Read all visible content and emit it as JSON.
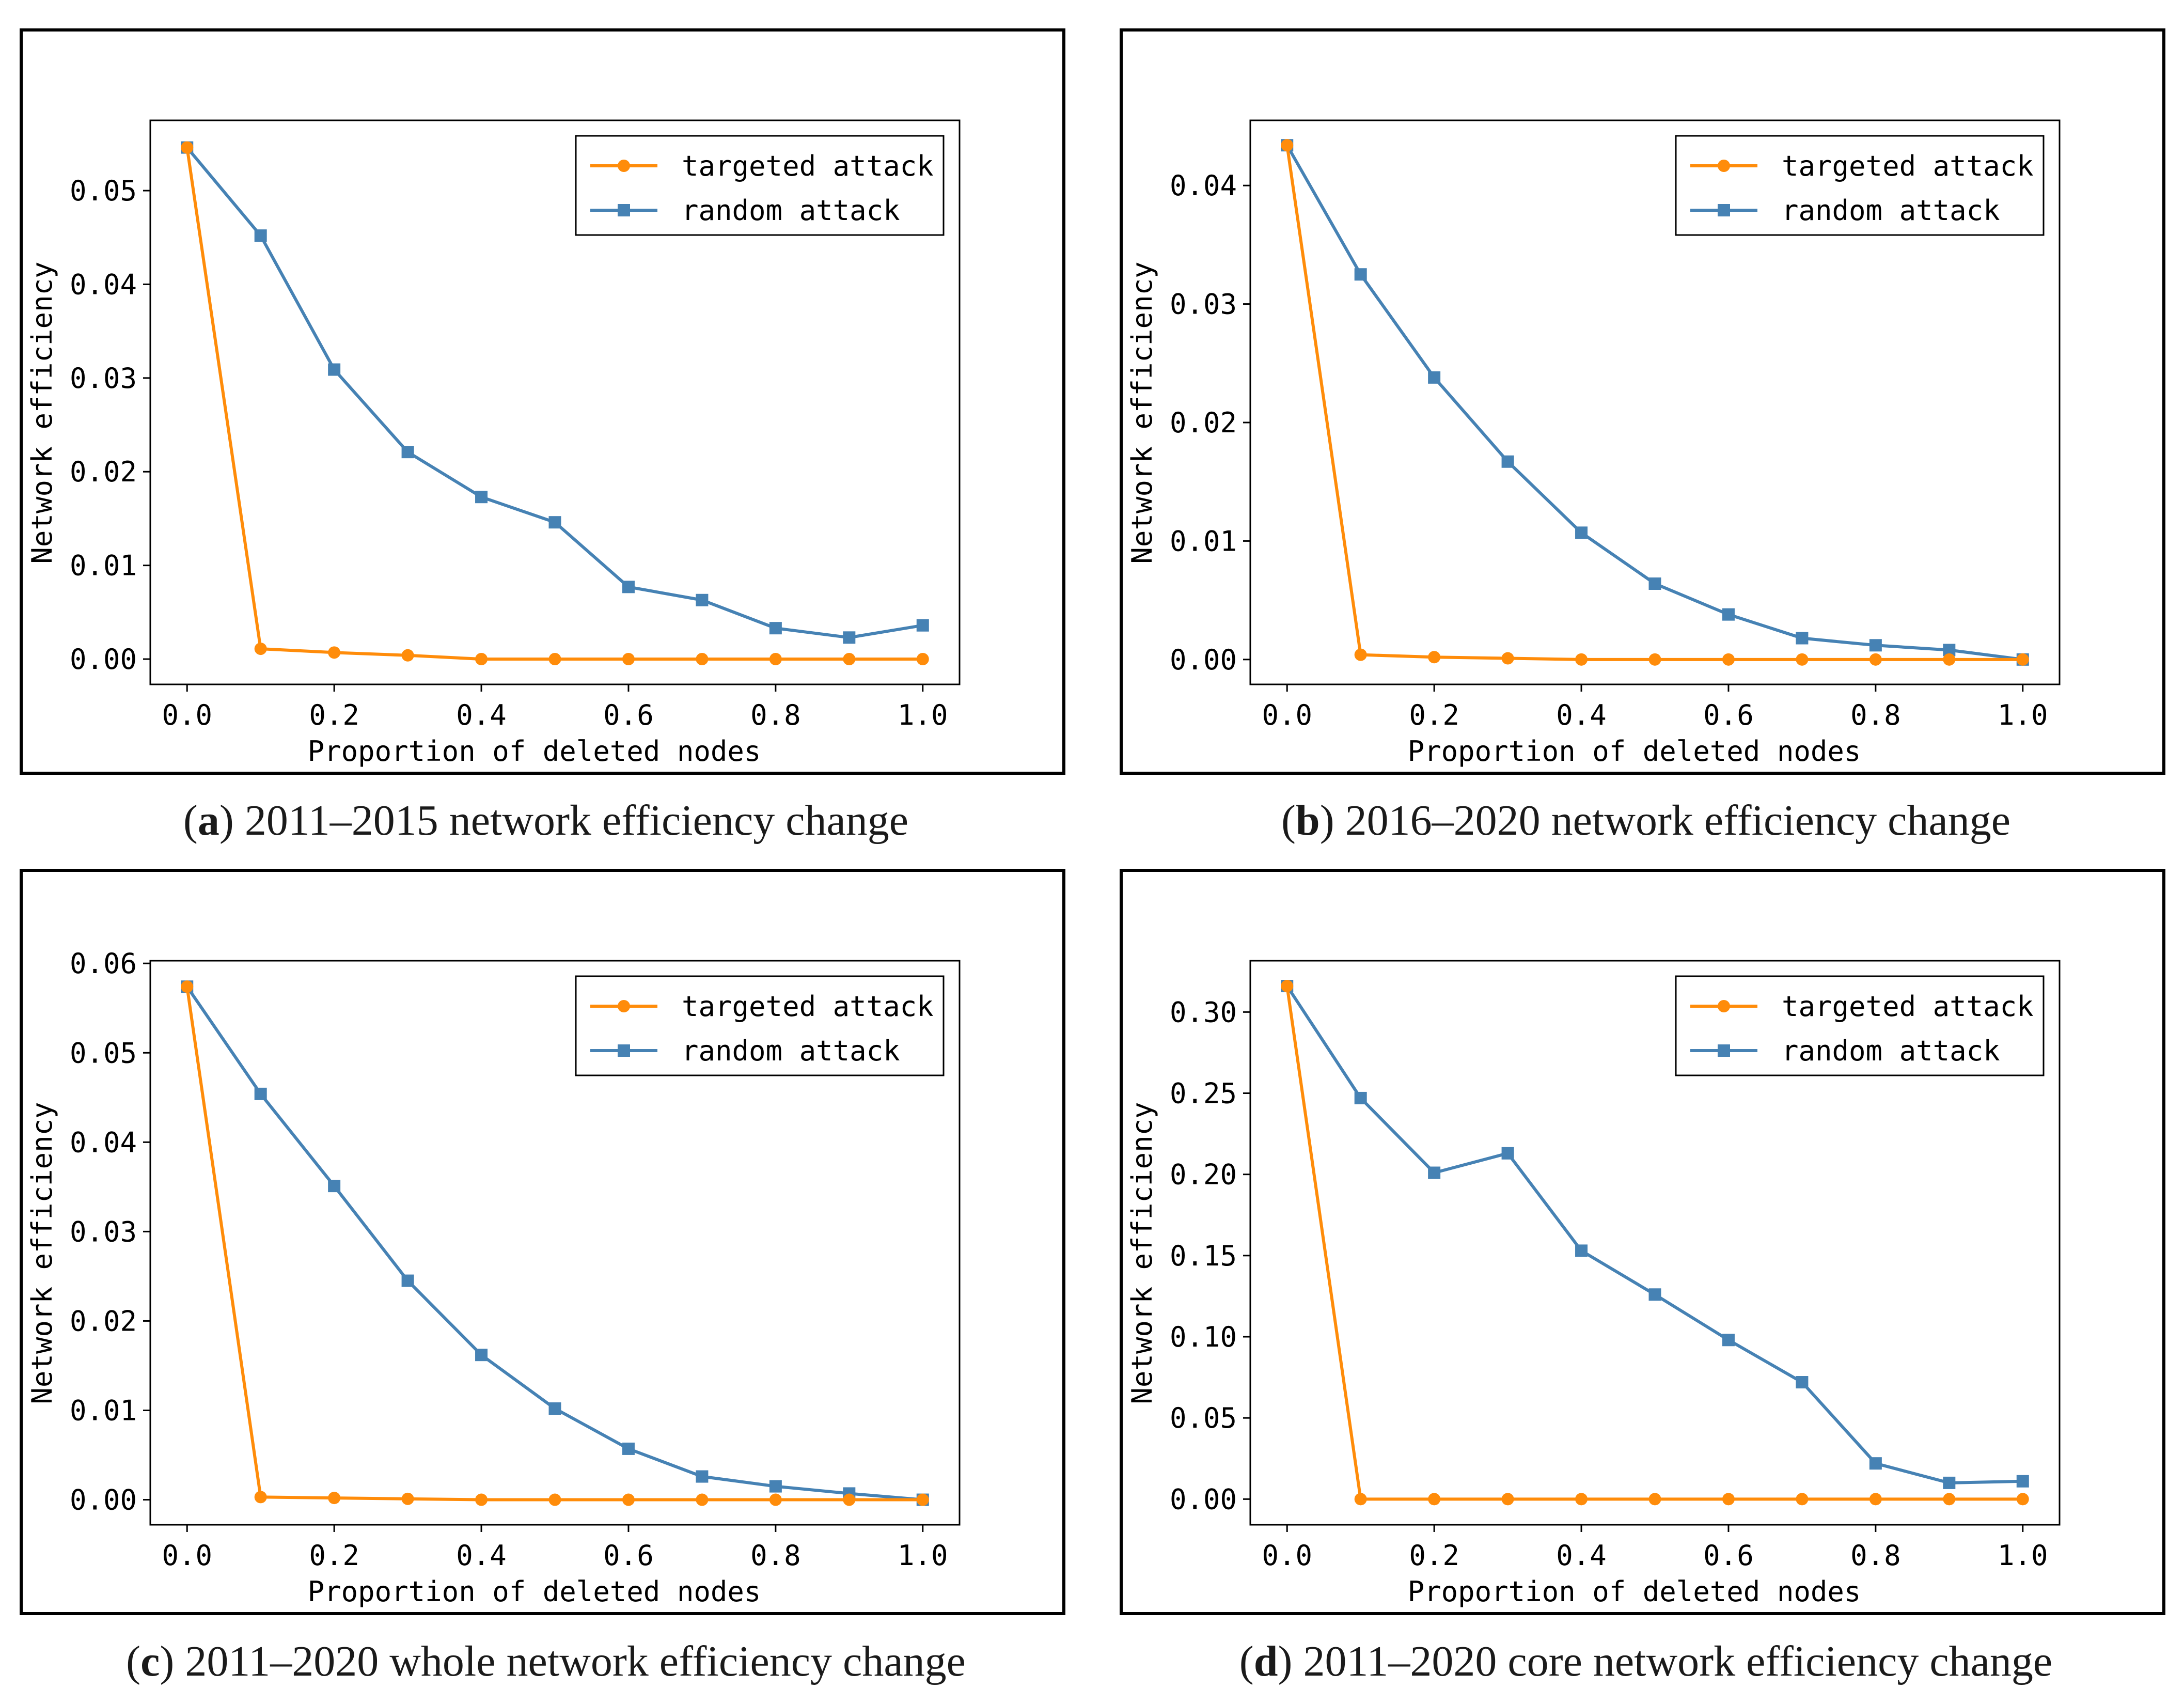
{
  "colors": {
    "targeted": "#FF8C0A",
    "random": "#4682B4"
  },
  "chart_data": [
    {
      "id": "a",
      "type": "line",
      "caption_letter": "a",
      "caption_text": " 2011–2015 network efficiency change",
      "xlabel": "Proportion of deleted nodes",
      "ylabel": "Network efficiency",
      "xlim": [
        -0.05,
        1.05
      ],
      "ylim": [
        -0.0027,
        0.0575
      ],
      "xticks": [
        0.0,
        0.2,
        0.4,
        0.6,
        0.8,
        1.0
      ],
      "xtick_labels": [
        "0.0",
        "0.2",
        "0.4",
        "0.6",
        "0.8",
        "1.0"
      ],
      "yticks": [
        0.0,
        0.01,
        0.02,
        0.03,
        0.04,
        0.05
      ],
      "ytick_labels": [
        "0.00",
        "0.01",
        "0.02",
        "0.03",
        "0.04",
        "0.05"
      ],
      "legend_position": "top-right",
      "x": [
        0.0,
        0.1,
        0.2,
        0.3,
        0.4,
        0.5,
        0.6,
        0.7,
        0.8,
        0.9,
        1.0
      ],
      "series": [
        {
          "name": "targeted attack",
          "marker": "circle",
          "color_key": "targeted",
          "values": [
            0.0546,
            0.0011,
            0.0007,
            0.0004,
            0.0,
            0.0,
            0.0,
            0.0,
            0.0,
            0.0,
            0.0
          ]
        },
        {
          "name": "random attack",
          "marker": "square",
          "color_key": "random",
          "values": [
            0.0546,
            0.0452,
            0.0309,
            0.0221,
            0.0173,
            0.0146,
            0.0077,
            0.0063,
            0.0033,
            0.0023,
            0.0036
          ]
        }
      ]
    },
    {
      "id": "b",
      "type": "line",
      "caption_letter": "b",
      "caption_text": " 2016–2020 network efficiency change",
      "xlabel": "Proportion of deleted nodes",
      "ylabel": "Network efficiency",
      "xlim": [
        -0.05,
        1.05
      ],
      "ylim": [
        -0.0021,
        0.0455
      ],
      "xticks": [
        0.0,
        0.2,
        0.4,
        0.6,
        0.8,
        1.0
      ],
      "xtick_labels": [
        "0.0",
        "0.2",
        "0.4",
        "0.6",
        "0.8",
        "1.0"
      ],
      "yticks": [
        0.0,
        0.01,
        0.02,
        0.03,
        0.04
      ],
      "ytick_labels": [
        "0.00",
        "0.01",
        "0.02",
        "0.03",
        "0.04"
      ],
      "legend_position": "top-right",
      "x": [
        0.0,
        0.1,
        0.2,
        0.3,
        0.4,
        0.5,
        0.6,
        0.7,
        0.8,
        0.9,
        1.0
      ],
      "series": [
        {
          "name": "targeted attack",
          "marker": "circle",
          "color_key": "targeted",
          "values": [
            0.0434,
            0.0004,
            0.0002,
            0.0001,
            0.0,
            0.0,
            0.0,
            0.0,
            0.0,
            0.0,
            0.0
          ]
        },
        {
          "name": "random attack",
          "marker": "square",
          "color_key": "random",
          "values": [
            0.0434,
            0.0325,
            0.0238,
            0.0167,
            0.0107,
            0.0064,
            0.0038,
            0.0018,
            0.0012,
            0.0008,
            0.0
          ]
        }
      ]
    },
    {
      "id": "c",
      "type": "line",
      "caption_letter": "c",
      "caption_text": " 2011–2020 whole network efficiency change",
      "xlabel": "Proportion of deleted nodes",
      "ylabel": "Network efficiency",
      "xlim": [
        -0.05,
        1.05
      ],
      "ylim": [
        -0.0028,
        0.0603
      ],
      "xticks": [
        0.0,
        0.2,
        0.4,
        0.6,
        0.8,
        1.0
      ],
      "xtick_labels": [
        "0.0",
        "0.2",
        "0.4",
        "0.6",
        "0.8",
        "1.0"
      ],
      "yticks": [
        0.0,
        0.01,
        0.02,
        0.03,
        0.04,
        0.05,
        0.06
      ],
      "ytick_labels": [
        "0.00",
        "0.01",
        "0.02",
        "0.03",
        "0.04",
        "0.05",
        "0.06"
      ],
      "legend_position": "top-right",
      "x": [
        0.0,
        0.1,
        0.2,
        0.3,
        0.4,
        0.5,
        0.6,
        0.7,
        0.8,
        0.9,
        1.0
      ],
      "series": [
        {
          "name": "targeted attack",
          "marker": "circle",
          "color_key": "targeted",
          "values": [
            0.0574,
            0.0003,
            0.0002,
            0.0001,
            0.0,
            0.0,
            0.0,
            0.0,
            0.0,
            0.0,
            0.0
          ]
        },
        {
          "name": "random attack",
          "marker": "square",
          "color_key": "random",
          "values": [
            0.0574,
            0.0454,
            0.0351,
            0.0245,
            0.0162,
            0.0102,
            0.0057,
            0.0026,
            0.0015,
            0.0007,
            0.0
          ]
        }
      ]
    },
    {
      "id": "d",
      "type": "line",
      "caption_letter": "d",
      "caption_text": " 2011–2020 core network efficiency change",
      "xlabel": "Proportion of deleted nodes",
      "ylabel": "Network efficiency",
      "xlim": [
        -0.05,
        1.05
      ],
      "ylim": [
        -0.0158,
        0.3316
      ],
      "xticks": [
        0.0,
        0.2,
        0.4,
        0.6,
        0.8,
        1.0
      ],
      "xtick_labels": [
        "0.0",
        "0.2",
        "0.4",
        "0.6",
        "0.8",
        "1.0"
      ],
      "yticks": [
        0.0,
        0.05,
        0.1,
        0.15,
        0.2,
        0.25,
        0.3
      ],
      "ytick_labels": [
        "0.00",
        "0.05",
        "0.10",
        "0.15",
        "0.20",
        "0.25",
        "0.30"
      ],
      "legend_position": "top-right",
      "x": [
        0.0,
        0.1,
        0.2,
        0.3,
        0.4,
        0.5,
        0.6,
        0.7,
        0.8,
        0.9,
        1.0
      ],
      "series": [
        {
          "name": "targeted attack",
          "marker": "circle",
          "color_key": "targeted",
          "values": [
            0.316,
            0.0,
            0.0,
            0.0,
            0.0,
            0.0,
            0.0,
            0.0,
            0.0,
            0.0,
            0.0
          ]
        },
        {
          "name": "random attack",
          "marker": "square",
          "color_key": "random",
          "values": [
            0.316,
            0.247,
            0.201,
            0.213,
            0.153,
            0.126,
            0.098,
            0.072,
            0.022,
            0.01,
            0.011
          ]
        }
      ]
    }
  ]
}
